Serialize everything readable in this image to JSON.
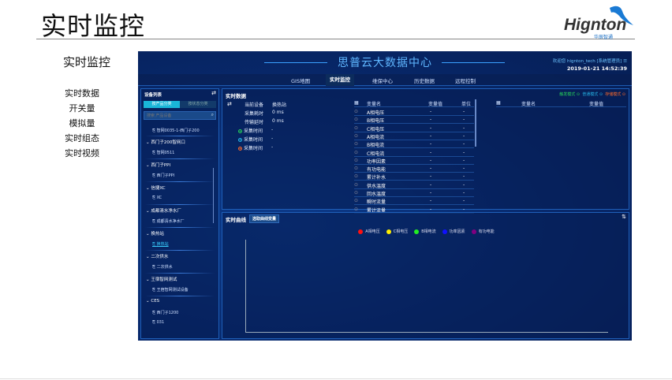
{
  "slide": {
    "title": "实时监控",
    "sidebar_heading": "实时监控",
    "menu": [
      "实时数据",
      "开关量",
      "模拟量",
      "实时组态",
      "实时视频"
    ]
  },
  "logo": {
    "word": "Hignton",
    "sub": "华辰智通"
  },
  "app": {
    "title": "思普云大数据中心",
    "user": "欢迎您  hignton_tech [系统管理员]",
    "datetime": "2019-01-21 14:52:39",
    "nav": [
      "GIS地图",
      "实时监控",
      "维保中心",
      "历史数据",
      "远程控制"
    ],
    "nav_active": 1,
    "device_list": {
      "title": "设备列表",
      "tabs": [
        "按产品分类",
        "按状态分类"
      ],
      "search_placeholder": "搜索 产品设备",
      "first_leaf": "智网0035-1-西门子200",
      "groups": [
        {
          "name": "西门子200智网口",
          "leaf": "智网0511"
        },
        {
          "name": "西门子PPI",
          "leaf": "西门子PPI"
        },
        {
          "name": "信捷XC",
          "leaf": "XC"
        },
        {
          "name": "成都清水净水厂",
          "leaf": "成都清水净水厂"
        },
        {
          "name": "换热站",
          "leaf": "换热站"
        },
        {
          "name": "二次供水",
          "leaf": "二次供水"
        },
        {
          "name": "王宿智网测试",
          "leaf": "王宿智网测试设备"
        },
        {
          "name": "CES",
          "leaf": "西门子1200",
          "leaf2": "031"
        }
      ]
    },
    "realtime": {
      "title": "实时数据",
      "modes": [
        {
          "label": "触发模式",
          "color": "#27d35a"
        },
        {
          "label": "普通模式",
          "color": "#27b6e8"
        },
        {
          "label": "存储模式",
          "color": "#ff6a2a"
        }
      ],
      "info": [
        {
          "label": "当前设备",
          "value": "换热站"
        },
        {
          "label": "采集耗时",
          "value": "0 ms"
        },
        {
          "label": "传输延时",
          "value": "0 ms"
        },
        {
          "label": "采集时间",
          "value": "-",
          "color": "#27d35a"
        },
        {
          "label": "采集时间",
          "value": "-",
          "color": "#27b6e8"
        },
        {
          "label": "采集时间",
          "value": "-",
          "color": "#ff6a2a"
        }
      ],
      "table_headers": [
        "变量名",
        "变量值",
        "单位"
      ],
      "rows": [
        "A相电压",
        "B相电压",
        "C相电压",
        "A相电流",
        "B相电流",
        "C相电流",
        "功率因素",
        "有功电能",
        "累计补水",
        "供水温度",
        "回水温度",
        "瞬时流量",
        "累计流量"
      ],
      "empty": "-",
      "right_headers": [
        "变量名",
        "变量值"
      ]
    },
    "curve": {
      "title": "实时曲线",
      "button": "选取曲线变量",
      "legend": [
        {
          "name": "A相电压",
          "color": "#ff1010"
        },
        {
          "name": "C相电压",
          "color": "#ffee00"
        },
        {
          "name": "B相电流",
          "color": "#22ee22"
        },
        {
          "name": "功率因素",
          "color": "#1010ff"
        },
        {
          "name": "有功电能",
          "color": "#800080"
        }
      ]
    }
  }
}
